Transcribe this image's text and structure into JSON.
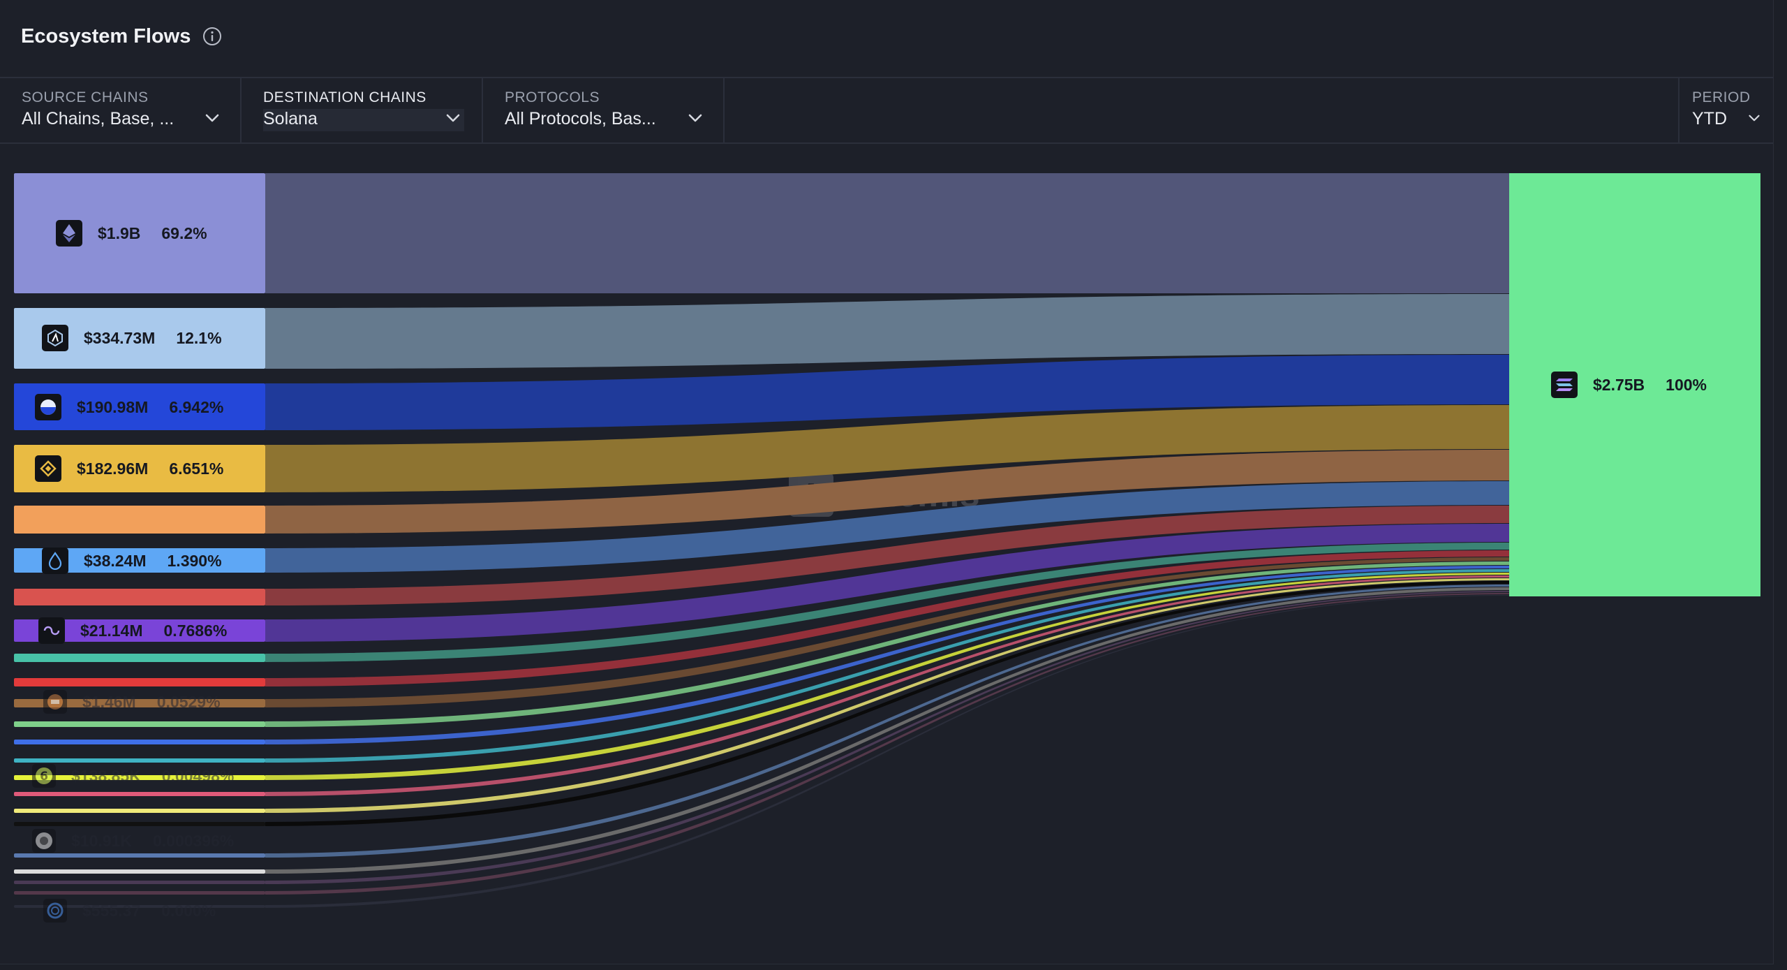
{
  "header": {
    "title": "Ecosystem Flows",
    "info_icon": "info-circle-icon"
  },
  "filters": {
    "source": {
      "label": "SOURCE CHAINS",
      "value": "All Chains, Base, ..."
    },
    "destination": {
      "label": "DESTINATION CHAINS",
      "value": "Solana"
    },
    "protocols": {
      "label": "PROTOCOLS",
      "value": "All Protocols, Bas..."
    },
    "period": {
      "label": "PERIOD",
      "value": "YTD"
    }
  },
  "watermark": "Artemis",
  "colors": {
    "background": "#1d2029",
    "destination": "#6de996",
    "accent_green": "#6de996"
  },
  "sankey": {
    "destination": {
      "value": "$2.75B",
      "percent": "100%",
      "icon": "solana-icon",
      "color": "#6de996"
    },
    "sources": [
      {
        "value": "$1.9B",
        "percent": "69.2%",
        "share": 69.2,
        "icon": "ethereum-icon",
        "color": "#8b8fd6",
        "flow": "#525679",
        "labeled": true
      },
      {
        "value": "$334.73M",
        "percent": "12.1%",
        "share": 12.1,
        "icon": "arbitrum-icon",
        "color": "#a9c9ec",
        "flow": "#657a8e",
        "labeled": true
      },
      {
        "value": "$190.98M",
        "percent": "6.942%",
        "share": 6.942,
        "icon": "base-icon",
        "color": "#2447d9",
        "flow": "#1f3a9a",
        "labeled": true
      },
      {
        "value": "$182.96M",
        "percent": "6.651%",
        "share": 6.651,
        "icon": "bnb-icon",
        "color": "#e9bb43",
        "flow": "#8e7431",
        "labeled": true
      },
      {
        "value": "",
        "percent": "",
        "share": 2.6,
        "icon": "",
        "color": "#f2a05b",
        "flow": "#8f6444",
        "labeled": false
      },
      {
        "value": "$38.24M",
        "percent": "1.390%",
        "share": 1.39,
        "icon": "sui-icon",
        "color": "#5ea7f5",
        "flow": "#41649a",
        "labeled": true
      },
      {
        "value": "",
        "percent": "",
        "share": 1.0,
        "icon": "",
        "color": "#d9534f",
        "flow": "#8a3b3f",
        "labeled": false
      },
      {
        "value": "$21.14M",
        "percent": "0.7686%",
        "share": 0.7686,
        "icon": "polygon-icon",
        "color": "#7a44d8",
        "flow": "#513696",
        "labeled": true
      },
      {
        "value": "",
        "percent": "",
        "share": 0.45,
        "icon": "",
        "color": "#48c2a8",
        "flow": "#3b8475",
        "labeled": false
      },
      {
        "value": "",
        "percent": "",
        "share": 0.4,
        "icon": "",
        "color": "#e23b3b",
        "flow": "#94303a",
        "labeled": false
      },
      {
        "value": "$1.46M",
        "percent": "0.0529%",
        "share": 0.0529,
        "icon": "bridge-icon",
        "color": "#9a6b3f",
        "flow": "#6a4a32",
        "labeled": true
      },
      {
        "value": "",
        "percent": "",
        "share": 0.05,
        "icon": "",
        "color": "#7fd08a",
        "flow": "#6fb47a",
        "labeled": false
      },
      {
        "value": "",
        "percent": "",
        "share": 0.05,
        "icon": "",
        "color": "#3f6fe8",
        "flow": "#3c63cc",
        "labeled": false
      },
      {
        "value": "",
        "percent": "",
        "share": 0.04,
        "icon": "",
        "color": "#3fb3c4",
        "flow": "#3a9fae",
        "labeled": false
      },
      {
        "value": "$138.85K",
        "percent": "0.00498%",
        "share": 0.00498,
        "icon": "linea-icon",
        "color": "#e6f23a",
        "flow": "#c6d23a",
        "labeled": true
      },
      {
        "value": "",
        "percent": "",
        "share": 0.03,
        "icon": "",
        "color": "#e05a7a",
        "flow": "#b8506a",
        "labeled": false
      },
      {
        "value": "",
        "percent": "",
        "share": 0.03,
        "icon": "",
        "color": "#f0ea7a",
        "flow": "#cfc96a",
        "labeled": false
      },
      {
        "value": "",
        "percent": "",
        "share": 0.02,
        "icon": "",
        "color": "#111111",
        "flow": "#0a0a0a",
        "labeled": false
      },
      {
        "value": "$10.91K",
        "percent": "0.000396%",
        "share": 0.000396,
        "icon": "sei-icon",
        "color": "#5a7ab0",
        "flow": "#4d6890",
        "labeled": true
      },
      {
        "value": "",
        "percent": "",
        "share": 0.02,
        "icon": "",
        "color": "#dcdcdc",
        "flow": "#6a6a6a",
        "labeled": false
      },
      {
        "value": "",
        "percent": "",
        "share": 0.01,
        "icon": "",
        "color": "#4a3a55",
        "flow": "#4a3a55",
        "labeled": false
      },
      {
        "value": "",
        "percent": "",
        "share": 0.01,
        "icon": "",
        "color": "#54384a",
        "flow": "#54384a",
        "labeled": false
      },
      {
        "value": "$555.37",
        "percent": "0.000%",
        "share": 0.0,
        "icon": "optimism-ring-icon",
        "color": "#2a2d3a",
        "flow": "#2a2d3a",
        "labeled": true
      }
    ]
  }
}
